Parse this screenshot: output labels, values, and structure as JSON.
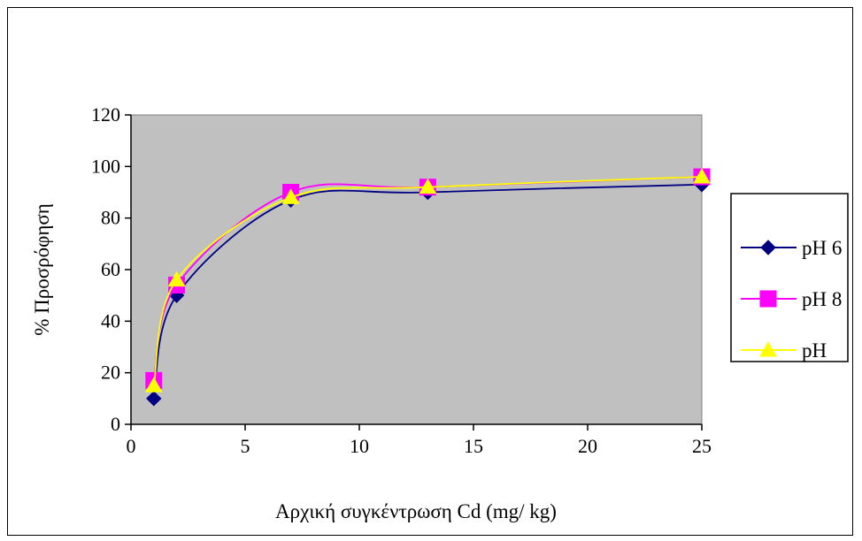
{
  "chart_data": {
    "type": "line",
    "title": "",
    "xlabel": "Αρχική συγκέντρωση Cd (mg/ kg)",
    "ylabel": "% Προσρόφηση",
    "xlim": [
      0,
      25
    ],
    "ylim": [
      0,
      120
    ],
    "x_ticks": [
      "0",
      "5",
      "10",
      "15",
      "20",
      "25"
    ],
    "y_ticks": [
      "0",
      "20",
      "40",
      "60",
      "80",
      "100",
      "120"
    ],
    "grid": false,
    "legend_position": "right",
    "plot_background": "#c0c0c0",
    "series": [
      {
        "name": "pH 6",
        "color": "#000080",
        "marker": "diamond",
        "points": [
          [
            1,
            10
          ],
          [
            2,
            50
          ],
          [
            7,
            87
          ],
          [
            13,
            90
          ],
          [
            25,
            93
          ]
        ]
      },
      {
        "name": "pH 8",
        "color": "#ff00ff",
        "marker": "square",
        "points": [
          [
            1,
            17
          ],
          [
            2,
            54
          ],
          [
            7,
            90
          ],
          [
            13,
            92
          ],
          [
            25,
            96
          ]
        ]
      },
      {
        "name": "pH",
        "color": "#ffff00",
        "marker": "triangle",
        "points": [
          [
            1,
            15
          ],
          [
            2,
            56
          ],
          [
            7,
            88
          ],
          [
            13,
            92
          ],
          [
            25,
            96
          ]
        ]
      }
    ]
  }
}
